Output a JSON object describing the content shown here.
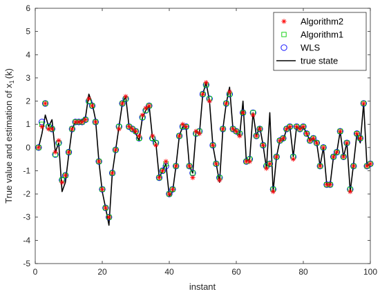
{
  "chart_data": {
    "type": "line",
    "xlabel": "instant",
    "ylabel_main": "True value and estimation of x",
    "ylabel_sub": "1",
    "ylabel_tail": "(k)",
    "xlim": [
      0,
      100
    ],
    "ylim": [
      -5,
      6
    ],
    "xticks": [
      0,
      20,
      40,
      60,
      80,
      100
    ],
    "yticks": [
      -5,
      -4,
      -3,
      -2,
      -1,
      0,
      1,
      2,
      3,
      4,
      5,
      6
    ],
    "legend_position": "top-right",
    "legend": [
      {
        "key": "alg2",
        "label": "Algorithm2",
        "marker": "asterisk",
        "color": "#ff0000"
      },
      {
        "key": "alg1",
        "label": "Algorithm1",
        "marker": "square",
        "color": "#00cc00"
      },
      {
        "key": "wls",
        "label": "WLS",
        "marker": "circle",
        "color": "#0000ff"
      },
      {
        "key": "true",
        "label": "true state",
        "marker": "line",
        "color": "#000000"
      }
    ],
    "x": [
      1,
      2,
      3,
      4,
      5,
      6,
      7,
      8,
      9,
      10,
      11,
      12,
      13,
      14,
      15,
      16,
      17,
      18,
      19,
      20,
      21,
      22,
      23,
      24,
      25,
      26,
      27,
      28,
      29,
      30,
      31,
      32,
      33,
      34,
      35,
      36,
      37,
      38,
      39,
      40,
      41,
      42,
      43,
      44,
      45,
      46,
      47,
      48,
      49,
      50,
      51,
      52,
      53,
      54,
      55,
      56,
      57,
      58,
      59,
      60,
      61,
      62,
      63,
      64,
      65,
      66,
      67,
      68,
      69,
      70,
      71,
      72,
      73,
      74,
      75,
      76,
      77,
      78,
      79,
      80,
      81,
      82,
      83,
      84,
      85,
      86,
      87,
      88,
      89,
      90,
      91,
      92,
      93,
      94,
      95,
      96,
      97,
      98,
      99,
      100
    ],
    "true_state": [
      0.0,
      0.6,
      1.4,
      0.9,
      1.2,
      -0.2,
      0.2,
      -1.9,
      -1.5,
      -0.3,
      0.8,
      1.1,
      1.1,
      1.2,
      1.3,
      2.3,
      1.9,
      1.2,
      -0.6,
      -1.9,
      -2.6,
      -3.35,
      -1.1,
      -0.1,
      0.9,
      1.9,
      2.2,
      0.9,
      0.8,
      0.6,
      0.3,
      1.3,
      1.6,
      1.8,
      0.4,
      0.2,
      -1.3,
      -1.0,
      -0.7,
      -2.1,
      -1.9,
      -0.8,
      0.5,
      0.9,
      0.9,
      -0.8,
      -1.1,
      0.7,
      0.6,
      2.3,
      2.8,
      2.0,
      0.1,
      -0.7,
      -1.5,
      0.8,
      1.9,
      2.6,
      0.8,
      0.7,
      0.5,
      2.0,
      -0.6,
      -0.5,
      1.5,
      0.5,
      0.9,
      0.1,
      -0.9,
      1.5,
      -1.9,
      -0.4,
      0.3,
      0.3,
      0.8,
      0.9,
      -0.4,
      0.9,
      0.8,
      0.9,
      0.6,
      0.3,
      0.4,
      0.2,
      -0.8,
      0.0,
      -1.6,
      -1.6,
      -0.4,
      -0.2,
      0.7,
      -0.4,
      0.2,
      -1.9,
      -0.7,
      0.6,
      0.2,
      1.9,
      -0.8,
      -0.7
    ],
    "algorithm2": [
      0.0,
      0.9,
      1.9,
      0.8,
      0.8,
      -0.2,
      0.3,
      -1.5,
      -1.2,
      -0.2,
      0.8,
      1.1,
      1.1,
      1.1,
      1.2,
      2.1,
      1.8,
      1.1,
      -0.6,
      -1.8,
      -2.6,
      -3.0,
      -1.1,
      -0.1,
      0.8,
      1.9,
      2.2,
      0.9,
      0.8,
      0.7,
      0.5,
      1.4,
      1.7,
      1.8,
      0.5,
      0.1,
      -1.3,
      -1.0,
      -0.6,
      -2.0,
      -1.8,
      -0.8,
      0.5,
      1.0,
      0.9,
      -0.8,
      -1.3,
      0.7,
      0.6,
      2.3,
      2.8,
      2.0,
      0.1,
      -0.7,
      -1.4,
      0.8,
      1.9,
      2.4,
      0.8,
      0.7,
      0.5,
      1.5,
      -0.6,
      -0.6,
      1.4,
      0.5,
      0.8,
      0.1,
      -0.9,
      -0.7,
      -1.9,
      -0.4,
      0.3,
      0.4,
      0.8,
      0.9,
      -0.5,
      0.9,
      0.8,
      0.9,
      0.6,
      0.3,
      0.4,
      0.2,
      -0.8,
      0.0,
      -1.6,
      -1.6,
      -0.4,
      -0.2,
      0.7,
      -0.4,
      0.2,
      -1.9,
      -0.8,
      0.6,
      0.4,
      1.9,
      -0.8,
      -0.7
    ],
    "algorithm1": [
      0.0,
      1.0,
      1.9,
      0.9,
      0.8,
      -0.3,
      0.2,
      -1.4,
      -1.2,
      -0.2,
      0.8,
      1.1,
      1.1,
      1.1,
      1.2,
      2.0,
      1.8,
      1.1,
      -0.6,
      -1.8,
      -2.6,
      -3.0,
      -1.1,
      -0.1,
      0.9,
      1.9,
      2.1,
      0.9,
      0.8,
      0.7,
      0.4,
      1.3,
      1.6,
      1.8,
      0.4,
      0.2,
      -1.3,
      -1.0,
      -0.7,
      -2.0,
      -1.8,
      -0.8,
      0.5,
      0.9,
      0.9,
      -0.8,
      -1.1,
      0.6,
      0.7,
      2.3,
      2.7,
      2.1,
      0.1,
      -0.7,
      -1.3,
      0.8,
      1.9,
      2.3,
      0.8,
      0.7,
      0.6,
      1.5,
      -0.6,
      -0.5,
      1.5,
      0.5,
      0.8,
      0.1,
      -0.8,
      -0.7,
      -1.8,
      -0.4,
      0.3,
      0.4,
      0.8,
      0.9,
      -0.4,
      0.9,
      0.8,
      0.9,
      0.6,
      0.3,
      0.4,
      0.2,
      -0.8,
      0.0,
      -1.6,
      -1.6,
      -0.4,
      -0.2,
      0.7,
      -0.4,
      0.2,
      -1.8,
      -0.8,
      0.6,
      0.4,
      1.9,
      -0.8,
      -0.7
    ],
    "wls": [
      0.0,
      1.1,
      1.9,
      0.9,
      0.8,
      -0.3,
      0.2,
      -1.4,
      -1.2,
      -0.2,
      0.8,
      1.1,
      1.1,
      1.1,
      1.2,
      2.0,
      1.8,
      1.1,
      -0.6,
      -1.8,
      -2.6,
      -3.0,
      -1.1,
      -0.1,
      0.9,
      1.9,
      2.1,
      0.9,
      0.8,
      0.7,
      0.4,
      1.3,
      1.6,
      1.8,
      0.4,
      0.2,
      -1.3,
      -1.0,
      -0.8,
      -2.0,
      -1.8,
      -0.8,
      0.5,
      0.9,
      0.9,
      -0.8,
      -1.1,
      0.6,
      0.7,
      2.3,
      2.7,
      2.1,
      0.1,
      -0.7,
      -1.3,
      0.8,
      1.9,
      2.3,
      0.8,
      0.7,
      0.6,
      1.5,
      -0.6,
      -0.5,
      1.5,
      0.5,
      0.8,
      0.1,
      -0.8,
      -0.7,
      -1.8,
      -0.4,
      0.3,
      0.4,
      0.8,
      0.9,
      -0.4,
      0.9,
      0.8,
      0.9,
      0.6,
      0.3,
      0.4,
      0.2,
      -0.8,
      0.0,
      -1.6,
      -1.6,
      -0.4,
      -0.2,
      0.7,
      -0.4,
      0.2,
      -1.8,
      -0.8,
      0.6,
      0.4,
      1.9,
      -0.8,
      -0.7
    ]
  }
}
